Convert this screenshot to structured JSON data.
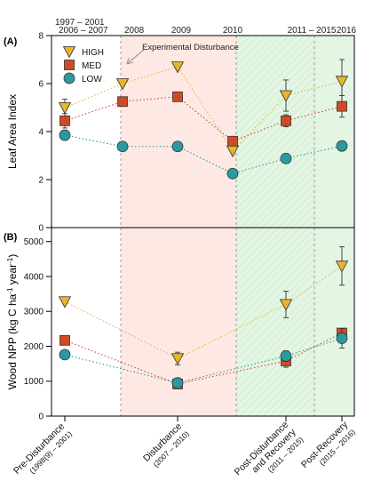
{
  "figure": {
    "top_labels": [
      "1997 – 2001",
      "2006 – 2007",
      "2008",
      "2009",
      "2010",
      "2011 – 2015",
      "2016"
    ],
    "annotation": "Experimental Disturbance",
    "phases": [
      {
        "name": "Pre-Disturbance",
        "sub": "(1998(9) – 2001)"
      },
      {
        "name": "Disturbance",
        "sub": "(2007 – 2010)"
      },
      {
        "name": "Post-Disturbance",
        "name2": "and Recovery",
        "sub": "(2011 – 2015)"
      },
      {
        "name": "Post-Recovery",
        "sub": "(2015 – 2016)"
      }
    ],
    "colors": {
      "HIGH": "#e8b52b",
      "MED": "#cf4b27",
      "LOW": "#2a9a9e",
      "disturbance_bg": "#fde8e4",
      "recovery_bg": "#e3f5e3"
    }
  },
  "chart_data": [
    {
      "panel": "(A)",
      "type": "line",
      "ylabel": "Leaf Area Index",
      "ylim": [
        0,
        8
      ],
      "yticks": [
        0,
        2,
        4,
        6,
        8
      ],
      "legend": [
        "HIGH",
        "MED",
        "LOW"
      ],
      "legend_position": "top-left",
      "series": [
        {
          "name": "HIGH",
          "marker": "triangle-down",
          "points": [
            {
              "x": 1997,
              "y": 5.0,
              "err": 0.35
            },
            {
              "x": 2008,
              "y": 6.0
            },
            {
              "x": 2009,
              "y": 6.7
            },
            {
              "x": 2010,
              "y": 3.2
            },
            {
              "x": 2013,
              "y": 5.5,
              "err": 0.65
            },
            {
              "x": 2016,
              "y": 6.1,
              "err": 0.9
            }
          ]
        },
        {
          "name": "MED",
          "marker": "square",
          "points": [
            {
              "x": 1997,
              "y": 4.45,
              "err": 0.3
            },
            {
              "x": 2008,
              "y": 5.25
            },
            {
              "x": 2009,
              "y": 5.45
            },
            {
              "x": 2010,
              "y": 3.6
            },
            {
              "x": 2013,
              "y": 4.45,
              "err": 0.25
            },
            {
              "x": 2016,
              "y": 5.05,
              "err": 0.45
            }
          ]
        },
        {
          "name": "LOW",
          "marker": "circle",
          "points": [
            {
              "x": 1997,
              "y": 3.85,
              "err": 0.2
            },
            {
              "x": 2008,
              "y": 3.38
            },
            {
              "x": 2009,
              "y": 3.38
            },
            {
              "x": 2010,
              "y": 2.25
            },
            {
              "x": 2013,
              "y": 2.88
            },
            {
              "x": 2016,
              "y": 3.4,
              "err": 0.2
            }
          ]
        }
      ]
    },
    {
      "panel": "(B)",
      "type": "line",
      "ylabel": "Wood NPP (kg C ha",
      "ylabel_sup": "-1",
      "ylabel_mid": " year",
      "ylabel_sup2": "-1",
      "ylabel_end": ")",
      "ylim": [
        0,
        5400
      ],
      "yticks": [
        0,
        1000,
        2000,
        3000,
        4000,
        5000
      ],
      "series": [
        {
          "name": "HIGH",
          "marker": "triangle-down",
          "points": [
            {
              "x": 1997,
              "y": 3280
            },
            {
              "x": 2009,
              "y": 1650,
              "err": 180
            },
            {
              "x": 2013,
              "y": 3200,
              "err": 380
            },
            {
              "x": 2016,
              "y": 4300,
              "err": 550
            }
          ]
        },
        {
          "name": "MED",
          "marker": "square",
          "points": [
            {
              "x": 1997,
              "y": 2170
            },
            {
              "x": 2009,
              "y": 920,
              "err": 100
            },
            {
              "x": 2013,
              "y": 1580,
              "err": 180
            },
            {
              "x": 2016,
              "y": 2380,
              "err": 130
            }
          ]
        },
        {
          "name": "LOW",
          "marker": "circle",
          "points": [
            {
              "x": 1997,
              "y": 1760
            },
            {
              "x": 2009,
              "y": 950,
              "err": 90
            },
            {
              "x": 2013,
              "y": 1720,
              "err": 150
            },
            {
              "x": 2016,
              "y": 2230,
              "err": 280
            }
          ]
        }
      ]
    }
  ]
}
